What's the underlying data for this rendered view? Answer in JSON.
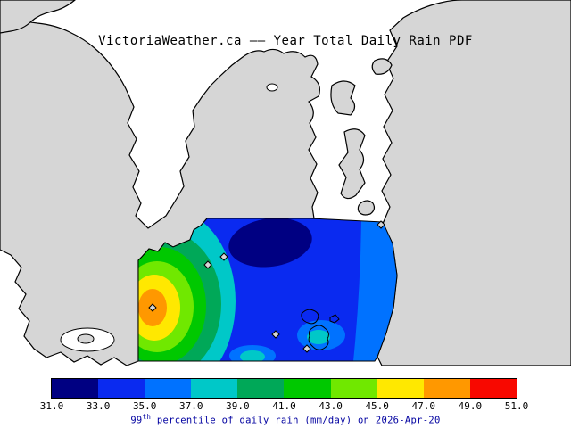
{
  "title": "VictoriaWeather.ca —— Year Total Daily Rain PDF",
  "caption": {
    "prefix": "99",
    "superscript": "th",
    "rest": " percentile of daily rain (mm/day) on 2026-Apr-20",
    "color": "#0000a0"
  },
  "colorbar": {
    "tick_labels": [
      "31.0",
      "33.0",
      "35.0",
      "37.0",
      "39.0",
      "41.0",
      "43.0",
      "45.0",
      "47.0",
      "49.0",
      "51.0"
    ],
    "segment_colors": [
      "#000082",
      "#0a2af0",
      "#0072ff",
      "#00c8c8",
      "#00a858",
      "#00c800",
      "#70e800",
      "#ffe800",
      "#ff9800",
      "#f80800"
    ],
    "border_color": "#000000"
  },
  "map": {
    "land_color": "#d6d6d6",
    "water_color": "#ffffff",
    "coast_color": "#000000",
    "marker_shape": "diamond"
  },
  "chart_data": {
    "type": "heatmap",
    "title": "VictoriaWeather.ca —— Year Total Daily Rain PDF",
    "variable": "99th percentile of daily rain",
    "units": "mm/day",
    "date": "2026-Apr-20",
    "colorbar_levels": [
      31,
      33,
      35,
      37,
      39,
      41,
      43,
      45,
      47,
      49,
      51
    ],
    "colorbar_colors": [
      "#000082",
      "#0a2af0",
      "#0072ff",
      "#00c8c8",
      "#00a858",
      "#00c800",
      "#70e800",
      "#ffe800",
      "#ff9800",
      "#f80800"
    ],
    "legend_position": "bottom",
    "value_range": [
      31,
      51
    ],
    "pattern": "Maximum ~47-49 mm/day (orange core with station marker) at the west edge of the analysis region, decreasing eastward through yellow, green, teal and cyan bands to a broad 33-35 mm/day blue area; local 31-33 mm/day navy minimum in the north-center of the region; lighter 35-37 band along the eastern coastline; diamond markers denote station locations; small outlined islands in the southeast of the region."
  }
}
